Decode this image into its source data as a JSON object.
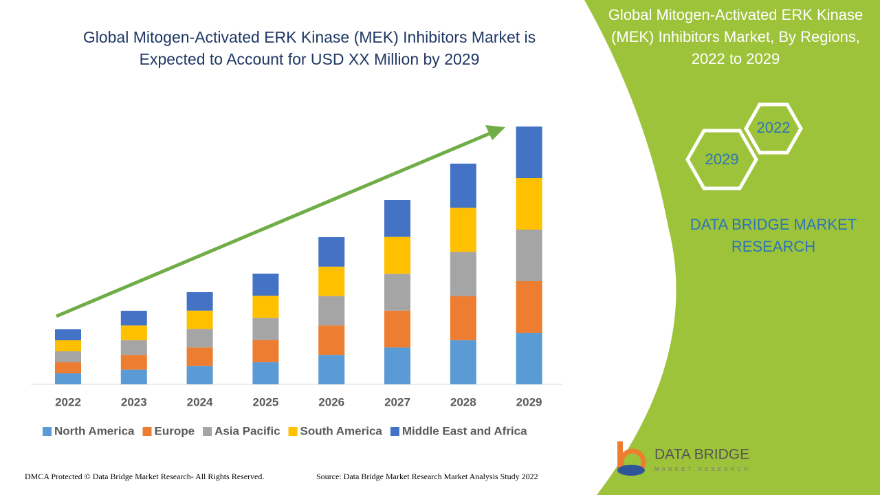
{
  "chart_data": {
    "type": "bar",
    "stacked": true,
    "title": "Global Mitogen-Activated ERK Kinase (MEK) Inhibitors Market is Expected to Account for USD XX Million by 2029",
    "categories": [
      "2022",
      "2023",
      "2024",
      "2025",
      "2026",
      "2027",
      "2028",
      "2029"
    ],
    "series": [
      {
        "name": "North America",
        "color": "#5b9bd5",
        "values": [
          16,
          21.4,
          26.8,
          32.2,
          42.8,
          53.6,
          64.2,
          75
        ]
      },
      {
        "name": "Europe",
        "color": "#ed7d31",
        "values": [
          16,
          21.4,
          26.8,
          32.2,
          42.8,
          53.6,
          64.2,
          75
        ]
      },
      {
        "name": "Asia Pacific",
        "color": "#a5a5a5",
        "values": [
          16,
          21.4,
          26.8,
          32.2,
          42.8,
          53.6,
          64.2,
          75
        ]
      },
      {
        "name": "South America",
        "color": "#ffc000",
        "values": [
          16,
          21.4,
          26.8,
          32.2,
          42.8,
          53.6,
          64.2,
          75
        ]
      },
      {
        "name": "Middle East and Africa",
        "color": "#4472c4",
        "values": [
          16,
          21.4,
          26.8,
          32.2,
          42.8,
          53.6,
          64.2,
          75
        ]
      }
    ]
  },
  "panel": {
    "title": "Global Mitogen-Activated ERK Kinase (MEK) Inhibitors Market, By Regions, 2022 to 2029",
    "hexagons": [
      "2022",
      "2029"
    ],
    "brand": "DATA BRIDGE MARKET RESEARCH"
  },
  "logo": {
    "name": "DATA BRIDGE",
    "tagline": "MARKET RESEARCH"
  },
  "footer": {
    "left": "DMCA Protected © Data Bridge Market Research- All Rights Reserved.",
    "right": "Source: Data Bridge Market Research Market Analysis Study 2022"
  }
}
